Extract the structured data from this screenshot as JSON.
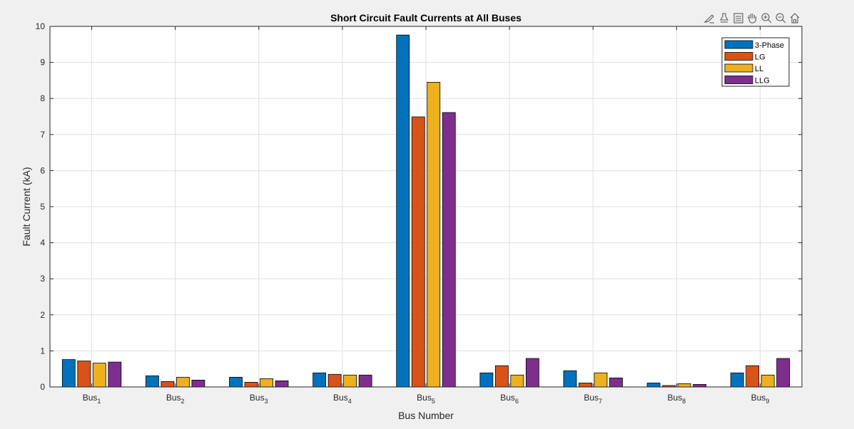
{
  "chart_data": {
    "type": "bar",
    "title": "Short Circuit Fault Currents at All Buses",
    "xlabel": "Bus Number",
    "ylabel": "Fault Current (kA)",
    "ylim": [
      0,
      10
    ],
    "yticks": [
      "0",
      "1",
      "2",
      "3",
      "4",
      "5",
      "6",
      "7",
      "8",
      "9",
      "10"
    ],
    "grid": true,
    "legend_position": "top-right",
    "categories": [
      {
        "base": "Bus",
        "sub": "1"
      },
      {
        "base": "Bus",
        "sub": "2"
      },
      {
        "base": "Bus",
        "sub": "3"
      },
      {
        "base": "Bus",
        "sub": "4"
      },
      {
        "base": "Bus",
        "sub": "5"
      },
      {
        "base": "Bus",
        "sub": "6"
      },
      {
        "base": "Bus",
        "sub": "7"
      },
      {
        "base": "Bus",
        "sub": "8"
      },
      {
        "base": "Bus",
        "sub": "9"
      }
    ],
    "series": [
      {
        "name": "3-Phase",
        "color": "#0072bd",
        "values": [
          0.76,
          0.31,
          0.27,
          0.39,
          9.76,
          0.39,
          0.45,
          0.11,
          0.39
        ]
      },
      {
        "name": "LG",
        "color": "#d95319",
        "values": [
          0.72,
          0.15,
          0.13,
          0.35,
          7.49,
          0.59,
          0.11,
          0.04,
          0.59
        ]
      },
      {
        "name": "LL",
        "color": "#edb120",
        "values": [
          0.66,
          0.27,
          0.23,
          0.33,
          8.45,
          0.33,
          0.39,
          0.09,
          0.33
        ]
      },
      {
        "name": "LLG",
        "color": "#7e2f8e",
        "values": [
          0.69,
          0.19,
          0.17,
          0.33,
          7.61,
          0.79,
          0.25,
          0.07,
          0.79
        ]
      }
    ]
  },
  "toolbar": {
    "icons": [
      "brush-icon",
      "data-tips-icon",
      "rotate-icon",
      "pan-icon",
      "zoom-in-icon",
      "zoom-out-icon",
      "home-icon"
    ]
  }
}
